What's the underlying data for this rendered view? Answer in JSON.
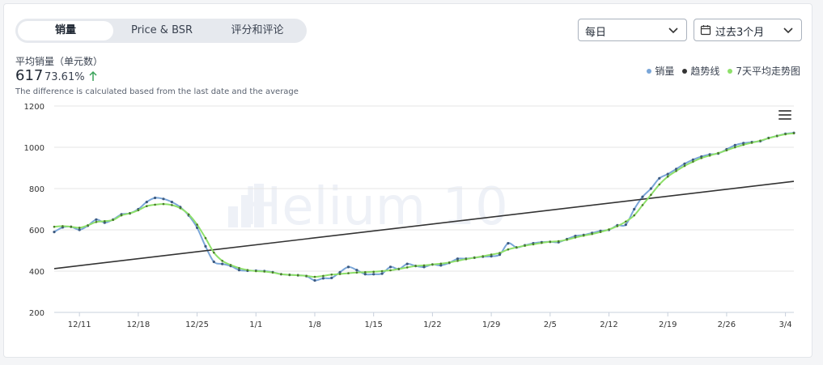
{
  "tabs": [
    {
      "label": "销量",
      "active": true
    },
    {
      "label": "Price & BSR",
      "active": false
    },
    {
      "label": "评分和评论",
      "active": false
    }
  ],
  "controls": {
    "interval": "每日",
    "range": "过去3个月"
  },
  "metric": {
    "label": "平均销量（单元数）",
    "value": "617",
    "change": "73.61%",
    "note": "The difference is calculated based from the last date and the average"
  },
  "watermark": "Helium 10",
  "colors": {
    "sales": "#7aa6d8",
    "trend": "#333333",
    "avg7": "#8ee06a",
    "up": "#3aa35a"
  },
  "chart_data": {
    "type": "line",
    "title": "",
    "xlabel": "",
    "ylabel": "",
    "ylim": [
      200,
      1200
    ],
    "yticks": [
      200,
      400,
      600,
      800,
      1000,
      1200
    ],
    "xticks": [
      {
        "x": 3,
        "label": "12/11"
      },
      {
        "x": 10,
        "label": "12/18"
      },
      {
        "x": 17,
        "label": "12/25"
      },
      {
        "x": 24,
        "label": "1/1"
      },
      {
        "x": 31,
        "label": "1/8"
      },
      {
        "x": 38,
        "label": "1/15"
      },
      {
        "x": 45,
        "label": "1/22"
      },
      {
        "x": 52,
        "label": "1/29"
      },
      {
        "x": 59,
        "label": "2/5"
      },
      {
        "x": 66,
        "label": "2/12"
      },
      {
        "x": 73,
        "label": "2/19"
      },
      {
        "x": 80,
        "label": "2/26"
      },
      {
        "x": 87,
        "label": "3/4"
      }
    ],
    "xrange": [
      0,
      88
    ],
    "grid": true,
    "legend": "top-right",
    "series": [
      {
        "name": "销量",
        "kind": "sales",
        "values": [
          590,
          612,
          615,
          600,
          620,
          650,
          635,
          650,
          675,
          680,
          700,
          735,
          755,
          750,
          735,
          710,
          670,
          610,
          520,
          445,
          435,
          425,
          405,
          402,
          402,
          400,
          395,
          385,
          382,
          380,
          376,
          355,
          365,
          367,
          395,
          420,
          405,
          385,
          385,
          388,
          420,
          410,
          435,
          425,
          420,
          432,
          428,
          440,
          460,
          460,
          465,
          470,
          472,
          480,
          535,
          515,
          525,
          535,
          540,
          542,
          540,
          555,
          570,
          575,
          585,
          595,
          600,
          622,
          625,
          700,
          760,
          800,
          850,
          870,
          895,
          920,
          940,
          955,
          965,
          970,
          990,
          1010,
          1020,
          1025,
          1030,
          1045,
          1055,
          1065,
          1070
        ]
      },
      {
        "name": "趋势线",
        "kind": "trend",
        "x": [
          0,
          88
        ],
        "values": [
          412,
          835
        ]
      },
      {
        "name": "7天平均走势图",
        "kind": "avg7",
        "values": [
          615,
          618,
          615,
          610,
          622,
          638,
          642,
          648,
          670,
          680,
          695,
          715,
          722,
          725,
          720,
          705,
          675,
          625,
          560,
          490,
          450,
          430,
          415,
          405,
          400,
          398,
          393,
          385,
          382,
          380,
          377,
          372,
          377,
          383,
          386,
          390,
          393,
          395,
          397,
          400,
          404,
          410,
          418,
          425,
          428,
          432,
          436,
          442,
          450,
          458,
          465,
          472,
          480,
          488,
          505,
          515,
          523,
          530,
          537,
          542,
          545,
          552,
          563,
          572,
          580,
          590,
          602,
          618,
          640,
          670,
          720,
          770,
          820,
          858,
          885,
          910,
          930,
          948,
          960,
          972,
          985,
          1000,
          1012,
          1022,
          1032,
          1044,
          1055,
          1063,
          1068
        ]
      }
    ]
  }
}
